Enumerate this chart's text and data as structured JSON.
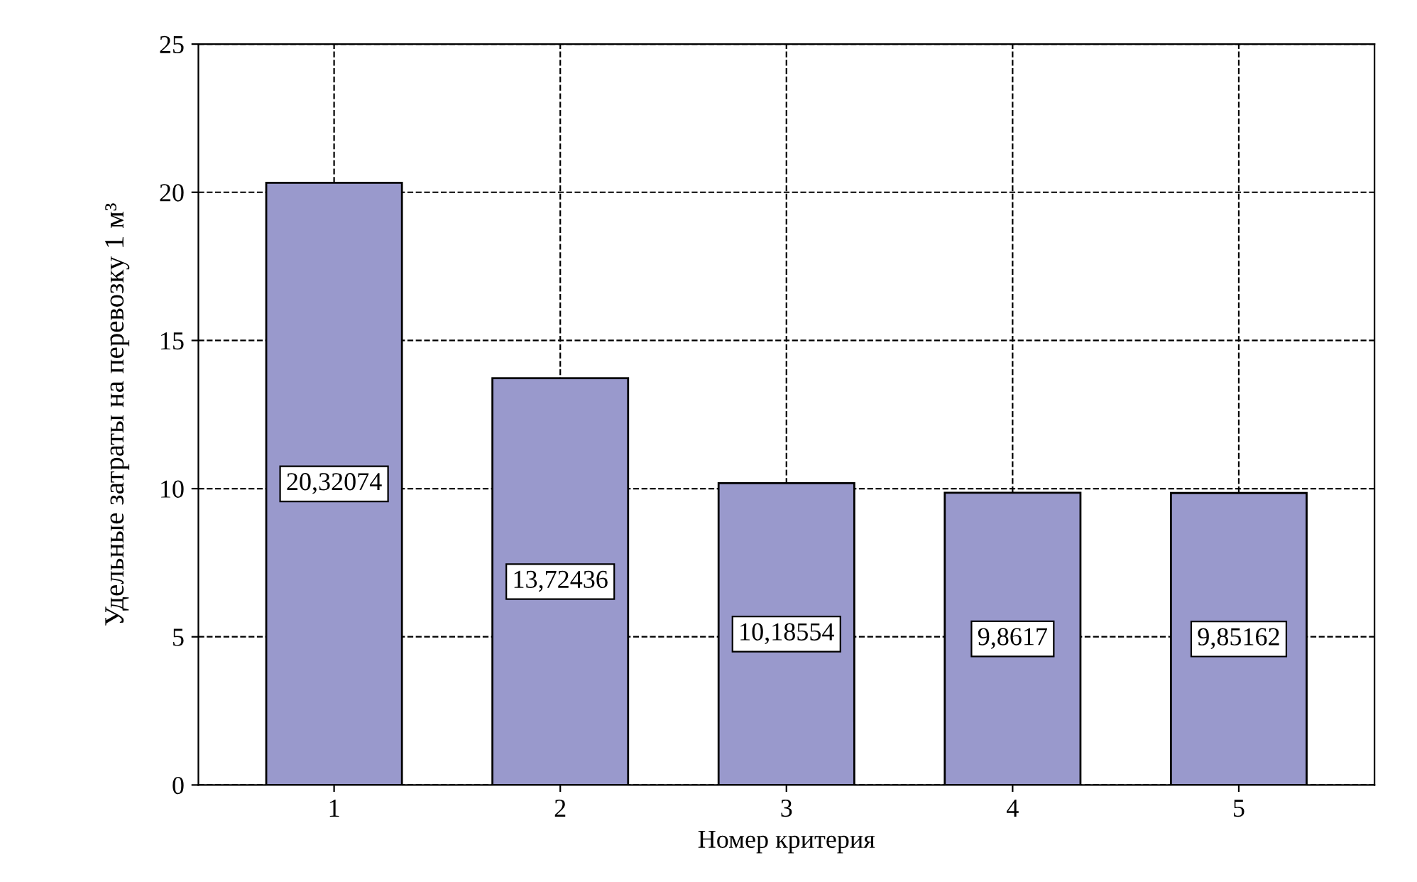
{
  "chart_data": {
    "type": "bar",
    "xlabel": "Номер критерия",
    "ylabel": "Удельные затраты на перевозку 1 м³",
    "categories": [
      "1",
      "2",
      "3",
      "4",
      "5"
    ],
    "values": [
      20.32074,
      13.72436,
      10.18554,
      9.8617,
      9.85162
    ],
    "value_labels": [
      "20,32074",
      "13,72436",
      "10,18554",
      "9,8617",
      "9,85162"
    ],
    "color": "#9999cc",
    "ylim": [
      0,
      25
    ],
    "yticks": [
      0,
      5,
      10,
      15,
      20,
      25
    ],
    "grid": true
  }
}
